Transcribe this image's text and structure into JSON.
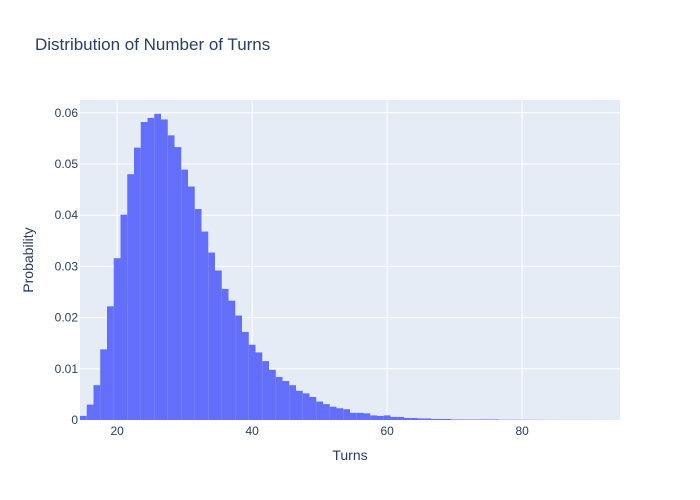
{
  "chart_data": {
    "type": "bar",
    "title": "Distribution of Number of Turns",
    "xlabel": "Turns",
    "ylabel": "Probability",
    "xlim": [
      14.5,
      94.5
    ],
    "ylim": [
      0,
      0.0625
    ],
    "xticks": [
      20,
      40,
      60,
      80
    ],
    "yticks": [
      0,
      0.01,
      0.02,
      0.03,
      0.04,
      0.05,
      0.06
    ],
    "ytick_labels": [
      "0",
      "0.01",
      "0.02",
      "0.03",
      "0.04",
      "0.05",
      "0.06"
    ],
    "bin_width": 1,
    "grid": true,
    "colors": {
      "bar": "#636efa",
      "plot_bg": "#e5ecf6",
      "grid": "#ffffff",
      "text": "#2a3f5f"
    },
    "x": [
      15,
      16,
      17,
      18,
      19,
      20,
      21,
      22,
      23,
      24,
      25,
      26,
      27,
      28,
      29,
      30,
      31,
      32,
      33,
      34,
      35,
      36,
      37,
      38,
      39,
      40,
      41,
      42,
      43,
      44,
      45,
      46,
      47,
      48,
      49,
      50,
      51,
      52,
      53,
      54,
      55,
      56,
      57,
      58,
      59,
      60,
      61,
      62,
      63,
      64,
      65,
      66,
      67,
      68,
      69,
      70,
      71,
      72,
      73,
      74,
      75,
      76,
      77,
      78,
      79,
      80,
      81,
      82,
      83,
      84,
      85,
      86,
      87,
      88,
      89,
      90
    ],
    "values": [
      0.0008,
      0.003,
      0.0068,
      0.0138,
      0.0222,
      0.0316,
      0.0401,
      0.048,
      0.0532,
      0.0582,
      0.059,
      0.0598,
      0.0587,
      0.0556,
      0.0533,
      0.0489,
      0.0456,
      0.0412,
      0.0368,
      0.0327,
      0.0292,
      0.0256,
      0.0233,
      0.0204,
      0.0172,
      0.0147,
      0.0132,
      0.0115,
      0.0098,
      0.0084,
      0.0076,
      0.0068,
      0.0057,
      0.0052,
      0.0045,
      0.0036,
      0.0031,
      0.0026,
      0.0023,
      0.0021,
      0.0014,
      0.0014,
      0.0013,
      0.0009,
      0.0008,
      0.0009,
      0.0006,
      0.0006,
      0.0004,
      0.0004,
      0.0003,
      0.0003,
      0.0002,
      0.0002,
      0.0002,
      0.0001,
      0.0001,
      0.0001,
      0.0001,
      0.0001,
      0.0001,
      0.0001,
      5e-05,
      5e-05,
      5e-05,
      5e-05,
      3e-05,
      3e-05,
      2e-05,
      2e-05,
      2e-05,
      1e-05,
      1e-05,
      1e-05,
      1e-05,
      1e-05
    ]
  }
}
